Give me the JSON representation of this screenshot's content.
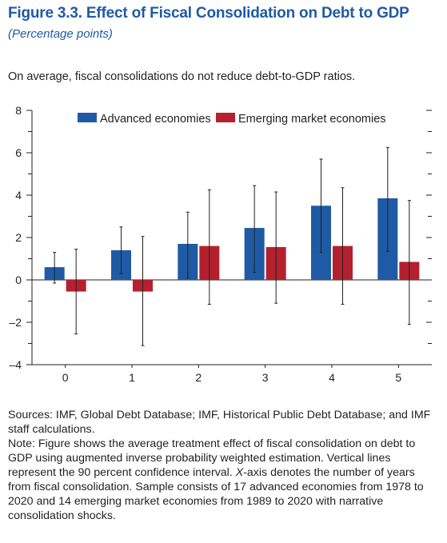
{
  "header": {
    "title": "Figure 3.3.  Effect of Fiscal Consolidation on Debt to GDP",
    "subtitle": "(Percentage points)",
    "lead": "On average, fiscal consolidations do not reduce debt-to-GDP ratios."
  },
  "chart_data": {
    "type": "bar",
    "categories": [
      "0",
      "1",
      "2",
      "3",
      "4",
      "5"
    ],
    "series": [
      {
        "name": "Advanced economies",
        "color": "#1f5aa5",
        "values": [
          0.6,
          1.4,
          1.7,
          2.45,
          3.5,
          3.85
        ],
        "ci_low": [
          -0.15,
          0.3,
          0.1,
          0.35,
          1.3,
          1.35
        ],
        "ci_high": [
          1.3,
          2.5,
          3.2,
          4.45,
          5.7,
          6.25
        ]
      },
      {
        "name": "Emerging market economies",
        "color": "#b5202e",
        "values": [
          -0.55,
          -0.55,
          1.6,
          1.55,
          1.6,
          0.85
        ],
        "ci_low": [
          -2.55,
          -3.1,
          -1.15,
          -1.1,
          -1.15,
          -2.1
        ],
        "ci_high": [
          1.45,
          2.05,
          4.25,
          4.15,
          4.35,
          3.75
        ]
      }
    ],
    "xlabel": "",
    "ylabel": "",
    "ylim": [
      -4,
      8
    ],
    "yticks": [
      "8",
      "6",
      "4",
      "2",
      "0",
      "–2",
      "–4"
    ],
    "legend_position": "top",
    "grid": false
  },
  "notes": {
    "sources": "Sources: IMF, Global Debt Database; IMF, Historical Public Debt Database; and IMF staff calculations.",
    "note_pre": "Note: Figure shows the average treatment effect of fiscal consolidation on debt to GDP using augmented inverse probability weighted estimation. Vertical lines represent the 90 percent confidence interval. ",
    "note_em": "X",
    "note_post": "-axis denotes the number of years from fiscal consolidation. Sample consists of 17 advanced economies from 1978 to 2020 and 14 emerging market economies from 1989 to 2020 with narrative consolidation shocks."
  }
}
